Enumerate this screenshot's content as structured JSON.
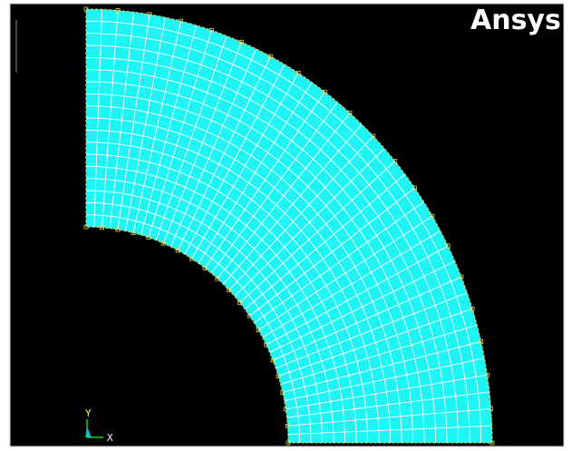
{
  "header": {
    "logo": "Ansys"
  },
  "triad": {
    "y_label": "Y",
    "x_label": "X"
  }
}
